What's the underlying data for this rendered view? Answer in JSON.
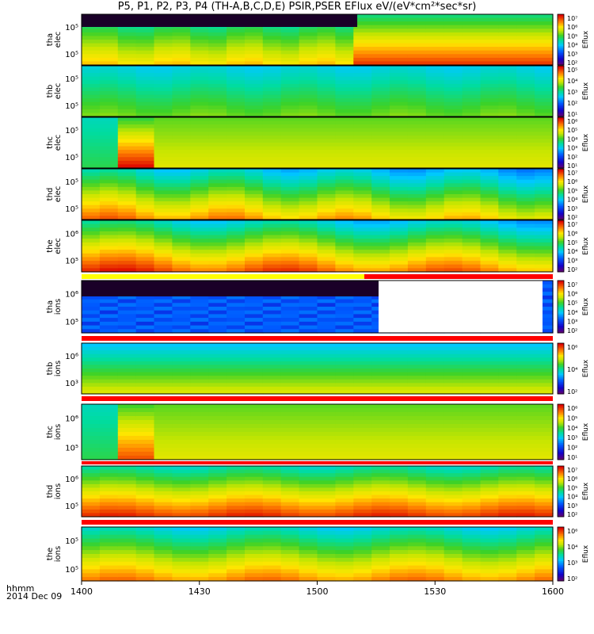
{
  "title": "P5, P1, P2, P3, P4 (TH-A,B,C,D,E) PSIR,PSER EFlux eV/(eV*cm²*sec*sr)",
  "footer": {
    "line1": "hhmm",
    "line2": "2014 Dec 09"
  },
  "chart_data": {
    "type": "heatmap",
    "x_ticks": [
      "1400",
      "1430",
      "1500",
      "1530",
      "1600"
    ],
    "x_range": [
      "14:00",
      "16:00"
    ],
    "colorbar_label": "Eflux",
    "panels": [
      {
        "ylabel": [
          "tha",
          "elec"
        ],
        "yticks": [
          "10⁵",
          "10⁵"
        ],
        "cbar_ticks": [
          "10⁷",
          "10⁶",
          "10⁵",
          "10⁴",
          "10³",
          "10²"
        ]
      },
      {
        "ylabel": [
          "thb",
          "elec"
        ],
        "yticks": [
          "10⁵",
          "10⁵"
        ],
        "cbar_ticks": [
          "10⁵",
          "10⁴",
          "10³",
          "10²",
          "10¹"
        ]
      },
      {
        "ylabel": [
          "thc",
          "elec"
        ],
        "yticks": [
          "10⁵",
          "10⁵"
        ],
        "cbar_ticks": [
          "10⁶",
          "10⁵",
          "10⁴",
          "10³",
          "10²",
          "10¹"
        ]
      },
      {
        "ylabel": [
          "thd",
          "elec"
        ],
        "yticks": [
          "10⁵",
          "10⁵"
        ],
        "cbar_ticks": [
          "10⁷",
          "10⁶",
          "10⁵",
          "10⁴",
          "10³",
          "10²"
        ]
      },
      {
        "ylabel": [
          "the",
          "elec"
        ],
        "yticks": [
          "10⁶",
          "10⁵"
        ],
        "cbar_ticks": [
          "10⁷",
          "10⁶",
          "10⁵",
          "10⁴",
          "10³",
          "10²"
        ]
      },
      {
        "ylabel": [
          "tha",
          "ions"
        ],
        "yticks": [
          "10⁶",
          "10⁵"
        ],
        "cbar_ticks": [
          "10⁷",
          "10⁶",
          "10⁵",
          "10⁴",
          "10³",
          "10²"
        ]
      },
      {
        "ylabel": [
          "thb",
          "ions"
        ],
        "yticks": [
          "10⁶",
          "10³"
        ],
        "cbar_ticks": [
          "10⁶",
          "10⁴",
          "10²"
        ]
      },
      {
        "ylabel": [
          "thc",
          "ions"
        ],
        "yticks": [
          "10⁶",
          "10⁵"
        ],
        "cbar_ticks": [
          "10⁶",
          "10⁵",
          "10⁴",
          "10³",
          "10²",
          "10¹"
        ]
      },
      {
        "ylabel": [
          "thd",
          "ions"
        ],
        "yticks": [
          "10⁶",
          "10⁵"
        ],
        "cbar_ticks": [
          "10⁷",
          "10⁶",
          "10⁵",
          "10⁴",
          "10³",
          "10²"
        ]
      },
      {
        "ylabel": [
          "the",
          "ions"
        ],
        "yticks": [
          "10⁵",
          "10⁵"
        ],
        "cbar_ticks": [
          "10⁶",
          "10⁴",
          "10³",
          "10²"
        ]
      }
    ]
  }
}
